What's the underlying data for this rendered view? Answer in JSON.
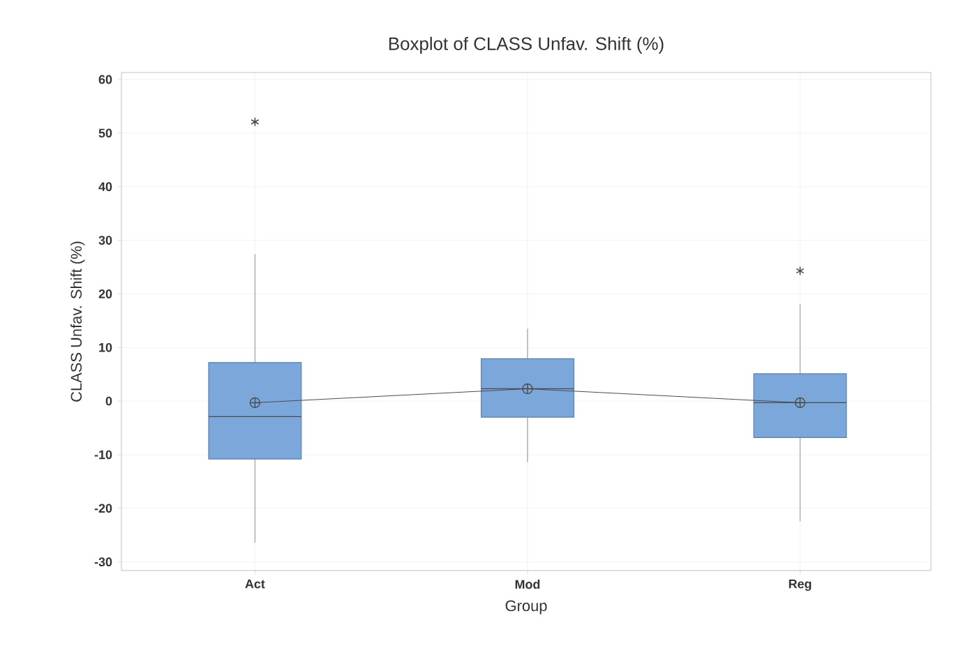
{
  "chart_data": {
    "type": "box",
    "title": "Boxplot of CLASS Unfav. Shift (%)",
    "xlabel": "Group",
    "ylabel": "CLASS Unfav. Shift (%)",
    "categories": [
      "Act",
      "Mod",
      "Reg"
    ],
    "color": "#7ba7da",
    "boxes": [
      {
        "low": -26.4,
        "q1": -10.8,
        "median": -2.9,
        "q3": 7.2,
        "high": 27.4,
        "mean": -0.3,
        "outliers": [
          52.1
        ]
      },
      {
        "low": -11.4,
        "q1": -3.0,
        "median": 2.3,
        "q3": 7.9,
        "high": 13.5,
        "mean": 2.3
      },
      {
        "low": -22.4,
        "q1": -6.8,
        "median": -0.3,
        "q3": 5.1,
        "high": 18.1,
        "mean": -0.3,
        "outliers": [
          24.3
        ]
      }
    ],
    "series": [
      {
        "type": "line",
        "color": "#4a4a4a",
        "values": [
          -0.3,
          2.3,
          -0.3
        ]
      }
    ],
    "ylim": [
      -31.6,
      61.3
    ],
    "yticks": [
      -30,
      -20,
      -10,
      0,
      10,
      20,
      30,
      40,
      50,
      60
    ],
    "grid": true
  }
}
